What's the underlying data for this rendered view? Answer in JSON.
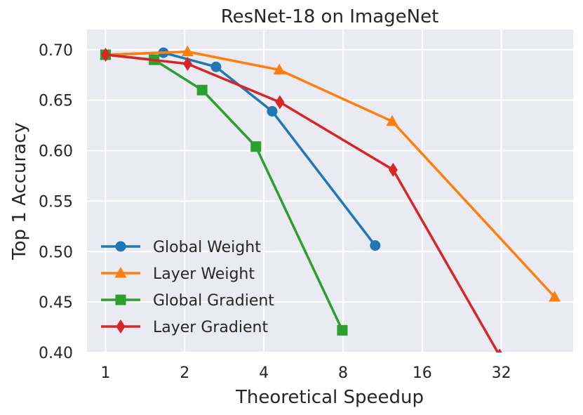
{
  "chart_data": {
    "type": "line",
    "title": "ResNet-18 on ImageNet",
    "xlabel": "Theoretical Speedup",
    "ylabel": "Top 1 Accuracy",
    "xscale": "log2",
    "xlim": [
      0.85,
      60
    ],
    "ylim": [
      0.4,
      0.72
    ],
    "xticks": [
      1,
      2,
      4,
      8,
      16,
      32
    ],
    "xtick_labels": [
      "1",
      "2",
      "4",
      "8",
      "16",
      "32"
    ],
    "yticks": [
      0.4,
      0.45,
      0.5,
      0.55,
      0.6,
      0.65,
      0.7
    ],
    "ytick_labels": [
      "0.40",
      "0.45",
      "0.50",
      "0.55",
      "0.60",
      "0.65",
      "0.70"
    ],
    "grid": true,
    "legend_position": "lower-left",
    "series": [
      {
        "name": "Global Weight",
        "color": "#1f77b4",
        "marker": "circle",
        "x": [
          1.0,
          1.66,
          2.63,
          4.3,
          10.6
        ],
        "y": [
          0.695,
          0.697,
          0.683,
          0.639,
          0.506
        ]
      },
      {
        "name": "Layer Weight",
        "color": "#ff7f0e",
        "marker": "triangle",
        "x": [
          1.0,
          2.05,
          4.58,
          12.3,
          51.0
        ],
        "y": [
          0.695,
          0.698,
          0.68,
          0.629,
          0.455
        ]
      },
      {
        "name": "Global Gradient",
        "color": "#2ca02c",
        "marker": "square",
        "x": [
          1.0,
          1.53,
          2.33,
          3.73,
          7.95
        ],
        "y": [
          0.695,
          0.69,
          0.66,
          0.604,
          0.422
        ]
      },
      {
        "name": "Layer Gradient",
        "color": "#d62728",
        "marker": "diamond",
        "x": [
          1.0,
          2.05,
          4.6,
          12.4,
          31.5
        ],
        "y": [
          0.695,
          0.686,
          0.648,
          0.581,
          0.397
        ]
      }
    ]
  }
}
